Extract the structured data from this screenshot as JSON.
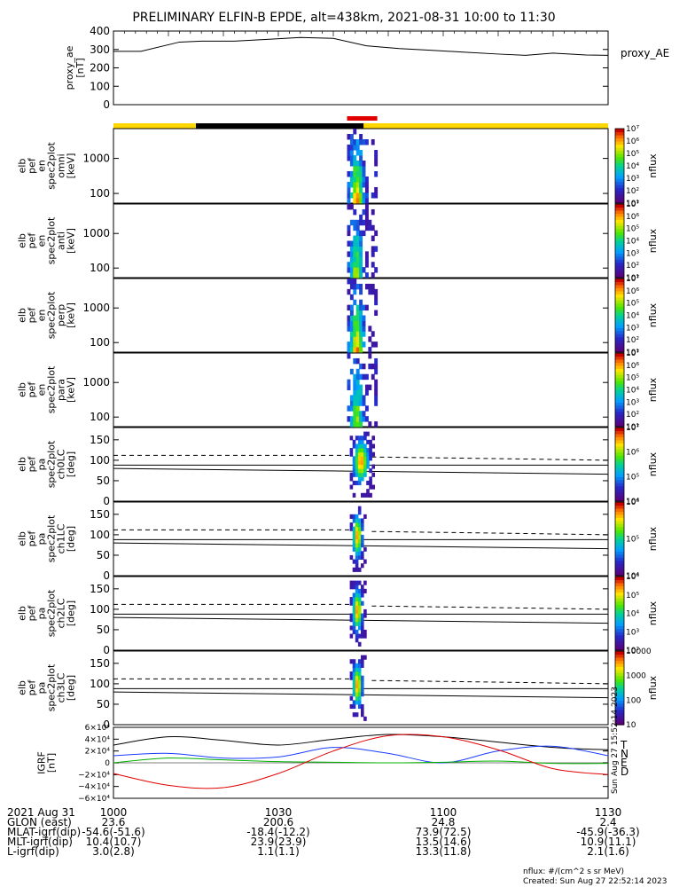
{
  "title": "PRELIMINARY ELFIN-B EPDE, alt=438km, 2021-08-31 10:00 to 11:30",
  "colors": {
    "orbit_bar_yellow": "#ffd700",
    "orbit_bar_black": "#000000",
    "science_zone_red": "#e00000",
    "igrf_T": "#000000",
    "igrf_N": "#1c3cff",
    "igrf_E": "#00b000",
    "igrf_D": "#e00000"
  },
  "chart_data": [
    {
      "type": "line",
      "panel": "proxy_ae",
      "ylabel": "proxy_ae\n[nT]",
      "legend": "proxy_AE",
      "ylim": [
        0,
        400
      ],
      "yticks": [
        "0",
        "100",
        "200",
        "300",
        "400"
      ],
      "x_minutes": [
        0,
        5,
        12,
        16,
        22,
        28,
        34,
        40,
        46,
        52,
        58,
        64,
        70,
        75,
        80,
        86,
        90
      ],
      "values": [
        290,
        290,
        340,
        345,
        345,
        355,
        365,
        360,
        320,
        305,
        295,
        285,
        275,
        268,
        280,
        270,
        268
      ]
    },
    {
      "type": "heatmap",
      "panel": "energy_spectrograms",
      "colorbar_label": "nflux",
      "colorbar_ticks": [
        "10¹",
        "10²",
        "10³",
        "10⁴",
        "10⁵",
        "10⁶",
        "10⁷"
      ],
      "energy_ticks_keV": [
        "100",
        "1000"
      ],
      "active_window_minutes": [
        42.5,
        48
      ],
      "panels": [
        {
          "ylabel": "elb\npef\nen\nspec2plot\nomni\n[keV]"
        },
        {
          "ylabel": "elb\npef\nen\nspec2plot\nanti\n[keV]"
        },
        {
          "ylabel": "elb\npef\nen\nspec2plot\nperp\n[keV]"
        },
        {
          "ylabel": "elb\npef\nen\nspec2plot\npara\n[keV]"
        }
      ]
    },
    {
      "type": "heatmap",
      "panel": "pitch_angle_spectrograms",
      "colorbar_label": "nflux",
      "pitch_ticks_deg": [
        "0",
        "50",
        "100",
        "150"
      ],
      "panels": [
        {
          "ylabel": "elb\npef\npa\nspec2plot\nch0LC\n[deg]",
          "colorbar_ticks": [
            "10⁴",
            "10⁵",
            "10⁶",
            "10⁷"
          ]
        },
        {
          "ylabel": "elb\npef\npa\nspec2plot\nch1LC\n[deg]",
          "colorbar_ticks": [
            "10⁴",
            "10⁵",
            "10⁶"
          ]
        },
        {
          "ylabel": "elb\npef\npa\nspec2plot\nch2LC\n[deg]",
          "colorbar_ticks": [
            "10²",
            "10³",
            "10⁴",
            "10⁵",
            "10⁶"
          ]
        },
        {
          "ylabel": "elb\npef\npa\nspec2plot\nch3LC\n[deg]",
          "colorbar_ticks": [
            "10",
            "100",
            "1000",
            "10000"
          ]
        }
      ]
    },
    {
      "type": "line",
      "panel": "igrf",
      "ylabel": "IGRF\n[nT]",
      "ylim": [
        -60000,
        60000
      ],
      "yticks": [
        "6×10⁴",
        "4×10⁴",
        "2×10⁴",
        "0",
        "−2×10⁴",
        "−4×10⁴",
        "−6×10⁴"
      ],
      "legend": [
        "T",
        "N",
        "E",
        "D"
      ],
      "x_minutes": [
        0,
        10,
        20,
        30,
        40,
        50,
        60,
        70,
        80,
        90
      ],
      "series": [
        {
          "name": "T",
          "values": [
            30000,
            44000,
            38000,
            30000,
            40000,
            48000,
            44000,
            35000,
            26000,
            22000
          ]
        },
        {
          "name": "N",
          "values": [
            12000,
            16000,
            8000,
            10000,
            26000,
            16000,
            0,
            20000,
            28000,
            12000
          ]
        },
        {
          "name": "E",
          "values": [
            0,
            8000,
            5000,
            2000,
            1000,
            0,
            1000,
            3000,
            -1000,
            -1000
          ]
        },
        {
          "name": "D",
          "values": [
            -18000,
            -38000,
            -42000,
            -18000,
            20000,
            46000,
            44000,
            22000,
            -10000,
            -20000
          ]
        }
      ]
    }
  ],
  "orbit_table": {
    "rows": [
      {
        "label": "2021 Aug 31",
        "values": [
          "1000",
          "1030",
          "1100",
          "1130"
        ]
      },
      {
        "label": "GLON (east)",
        "values": [
          "23.6",
          "200.6",
          "24.8",
          "2.4"
        ]
      },
      {
        "label": "MLAT-igrf(dip)",
        "values": [
          "-54.6(-51.6)",
          "-18.4(-12.2)",
          "73.9(72.5)",
          "-45.9(-36.3)"
        ]
      },
      {
        "label": "MLT-igrf(dip)",
        "values": [
          "10.4(10.7)",
          "23.9(23.9)",
          "13.5(14.6)",
          "10.9(11.1)"
        ]
      },
      {
        "label": "L-igrf(dip)",
        "values": [
          "3.0(2.8)",
          "1.1(1.1)",
          "13.3(11.8)",
          "2.1(1.6)"
        ]
      }
    ]
  },
  "footer": {
    "units": "nflux: #/(cm^2 s sr MeV)",
    "created": "Created: Sun Aug 27 22:52:14 2023",
    "side_stamp": "Sun Aug 27 15:52:14 2023"
  }
}
